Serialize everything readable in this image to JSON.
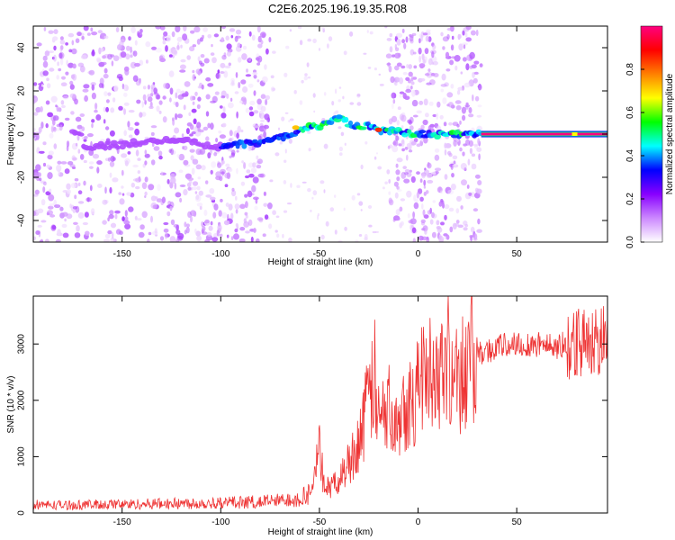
{
  "title": "C2E6.2025.196.19.35.R08",
  "chart_data": [
    {
      "type": "heatmap",
      "xlabel": "Height of straight line (km)",
      "ylabel": "Frequency (Hz)",
      "xlim": [
        -195,
        96
      ],
      "ylim": [
        -50,
        50
      ],
      "xticks": [
        -150,
        -100,
        -50,
        0,
        50
      ],
      "yticks": [
        -40,
        -20,
        0,
        20,
        40
      ],
      "colorbar": {
        "label": "Normalized spectral amplitude",
        "ticks": [
          "0.0",
          "0.2",
          "0.4",
          "0.6",
          "0.8"
        ],
        "range": [
          0,
          1
        ],
        "colors": [
          "#ffffff",
          "#cc88ff",
          "#8800ff",
          "#0000ff",
          "#00ffff",
          "#00ff00",
          "#ffff00",
          "#ff8000",
          "#ff0000",
          "#ff0080"
        ]
      },
      "ridge": {
        "description_free_points_km_hz": [
          [
            -170,
            -6
          ],
          [
            -150,
            -5
          ],
          [
            -120,
            -2
          ],
          [
            -105,
            -6
          ],
          [
            -90,
            -5
          ],
          [
            -80,
            -4
          ],
          [
            -70,
            -2
          ],
          [
            -60,
            2
          ],
          [
            -55,
            3
          ],
          [
            -45,
            5
          ],
          [
            -40,
            8
          ],
          [
            -35,
            5
          ],
          [
            -30,
            3
          ],
          [
            -25,
            4
          ],
          [
            -20,
            2
          ],
          [
            -10,
            1
          ],
          [
            0,
            0
          ],
          [
            10,
            0
          ],
          [
            20,
            0
          ],
          [
            30,
            0
          ],
          [
            32,
            0
          ],
          [
            95,
            0
          ]
        ],
        "steady_tone_start_km": 32,
        "steady_tone_end_km": 96,
        "steady_tone_freq_hz": 0
      },
      "noise_regions_km": [
        [
          -195,
          -75
        ],
        [
          -15,
          32
        ]
      ]
    },
    {
      "type": "line",
      "xlabel": "Height of straight line (km)",
      "ylabel": "SNR (10 * v/v)",
      "xlim": [
        -195,
        96
      ],
      "ylim": [
        0,
        3850
      ],
      "xticks": [
        -150,
        -100,
        -50,
        0,
        50
      ],
      "yticks": [
        0,
        1000,
        2000,
        3000
      ],
      "color": "#ee3333",
      "x": [
        -195,
        -180,
        -160,
        -140,
        -120,
        -100,
        -80,
        -70,
        -60,
        -55,
        -50,
        -48,
        -45,
        -40,
        -35,
        -30,
        -25,
        -22,
        -20,
        -15,
        -10,
        -5,
        0,
        5,
        10,
        15,
        20,
        25,
        30,
        40,
        50,
        60,
        70,
        75,
        80,
        85,
        90,
        96
      ],
      "values": [
        150,
        140,
        150,
        160,
        170,
        180,
        200,
        220,
        260,
        350,
        1100,
        600,
        400,
        600,
        900,
        1300,
        2000,
        2400,
        1600,
        1900,
        1800,
        2000,
        2200,
        2500,
        2600,
        2700,
        2500,
        2650,
        2800,
        2950,
        3000,
        3000,
        2950,
        3000,
        3050,
        3000,
        3050,
        3100
      ]
    }
  ]
}
